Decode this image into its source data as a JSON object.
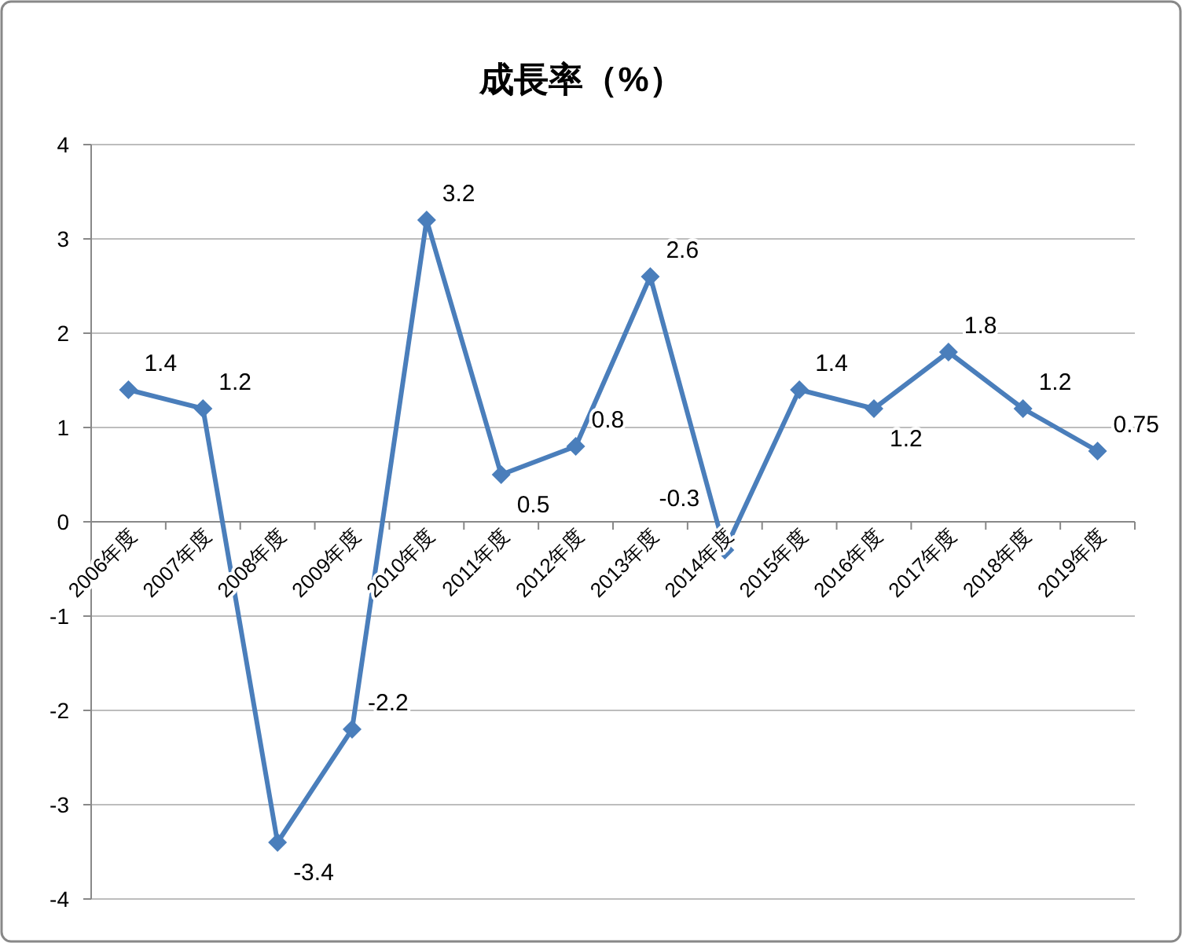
{
  "chart_data": {
    "type": "line",
    "title": "成長率（%）",
    "categories": [
      "2006年度",
      "2007年度",
      "2008年度",
      "2009年度",
      "2010年度",
      "2011年度",
      "2012年度",
      "2013年度",
      "2014年度",
      "2015年度",
      "2016年度",
      "2017年度",
      "2018年度",
      "2019年度"
    ],
    "series": [
      {
        "color": "#4a7ebb",
        "values": [
          1.4,
          1.2,
          -3.4,
          -2.2,
          3.2,
          0.5,
          0.8,
          2.6,
          -0.3,
          1.4,
          1.2,
          1.8,
          1.2,
          0.75
        ]
      }
    ],
    "ylim": [
      -4,
      4
    ],
    "yticks": [
      -4,
      -3,
      -2,
      -1,
      0,
      1,
      2,
      3,
      4
    ],
    "grid": "y",
    "marker": "diamond",
    "data_labels": true
  }
}
